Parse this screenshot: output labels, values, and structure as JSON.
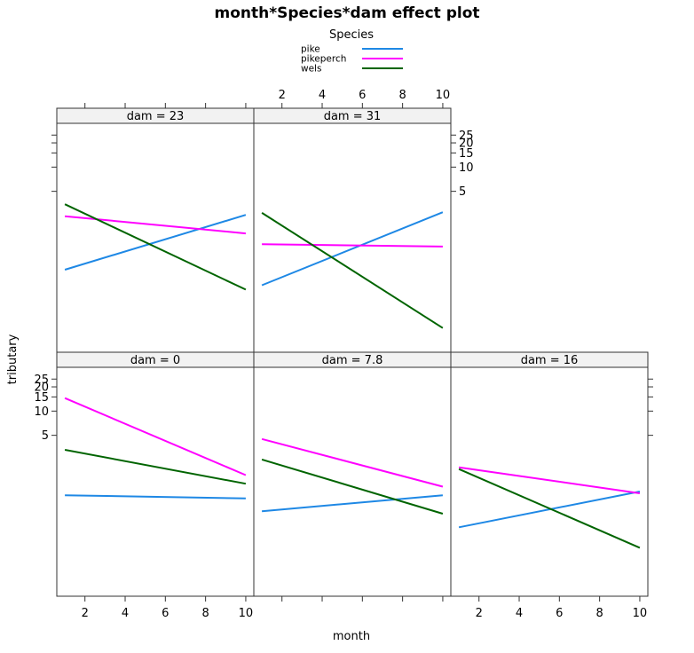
{
  "chart_data": {
    "type": "line",
    "title": "month*Species*dam effect plot",
    "xlabel": "month",
    "ylabel": "tributary",
    "xlim": [
      0.6,
      10.4
    ],
    "x_ticks": [
      "2",
      "4",
      "6",
      "8",
      "10"
    ],
    "y_scale": "log",
    "ylim": [
      0.05,
      35
    ],
    "y_ticks": [
      "5",
      "10",
      "15",
      "20",
      "25"
    ],
    "legend": {
      "title": "Species",
      "placement": "top-center"
    },
    "series_styles": [
      {
        "name": "pike",
        "color": "#1e88e5"
      },
      {
        "name": "pikeperch",
        "color": "#ff00ff"
      },
      {
        "name": "wels",
        "color": "#006400"
      }
    ],
    "panels": [
      {
        "strip": "dam = 23",
        "row": 0,
        "col": 0,
        "series": [
          {
            "name": "pike",
            "x": [
              1,
              10
            ],
            "y": [
              0.53,
              2.55
            ]
          },
          {
            "name": "pikeperch",
            "x": [
              1,
              10
            ],
            "y": [
              2.45,
              1.5
            ]
          },
          {
            "name": "wels",
            "x": [
              1,
              10
            ],
            "y": [
              3.45,
              0.3
            ]
          }
        ]
      },
      {
        "strip": "dam = 31",
        "row": 0,
        "col": 1,
        "series": [
          {
            "name": "pike",
            "x": [
              1,
              10
            ],
            "y": [
              0.34,
              2.75
            ]
          },
          {
            "name": "pikeperch",
            "x": [
              1,
              10
            ],
            "y": [
              1.1,
              1.03
            ]
          },
          {
            "name": "wels",
            "x": [
              1,
              10
            ],
            "y": [
              2.7,
              0.1
            ]
          }
        ]
      },
      {
        "strip": "dam = 0",
        "row": 1,
        "col": 0,
        "series": [
          {
            "name": "pike",
            "x": [
              1,
              10
            ],
            "y": [
              0.9,
              0.82
            ]
          },
          {
            "name": "pikeperch",
            "x": [
              1,
              10
            ],
            "y": [
              14.5,
              1.6
            ]
          },
          {
            "name": "wels",
            "x": [
              1,
              10
            ],
            "y": [
              3.3,
              1.25
            ]
          }
        ]
      },
      {
        "strip": "dam = 7.8",
        "row": 1,
        "col": 1,
        "series": [
          {
            "name": "pike",
            "x": [
              1,
              10
            ],
            "y": [
              0.57,
              0.9
            ]
          },
          {
            "name": "pikeperch",
            "x": [
              1,
              10
            ],
            "y": [
              4.5,
              1.15
            ]
          },
          {
            "name": "wels",
            "x": [
              1,
              10
            ],
            "y": [
              2.5,
              0.53
            ]
          }
        ]
      },
      {
        "strip": "dam = 16",
        "row": 1,
        "col": 2,
        "series": [
          {
            "name": "pike",
            "x": [
              1,
              10
            ],
            "y": [
              0.36,
              1.0
            ]
          },
          {
            "name": "pikeperch",
            "x": [
              1,
              10
            ],
            "y": [
              2.0,
              0.95
            ]
          },
          {
            "name": "wels",
            "x": [
              1,
              10
            ],
            "y": [
              1.9,
              0.2
            ]
          }
        ]
      }
    ]
  }
}
